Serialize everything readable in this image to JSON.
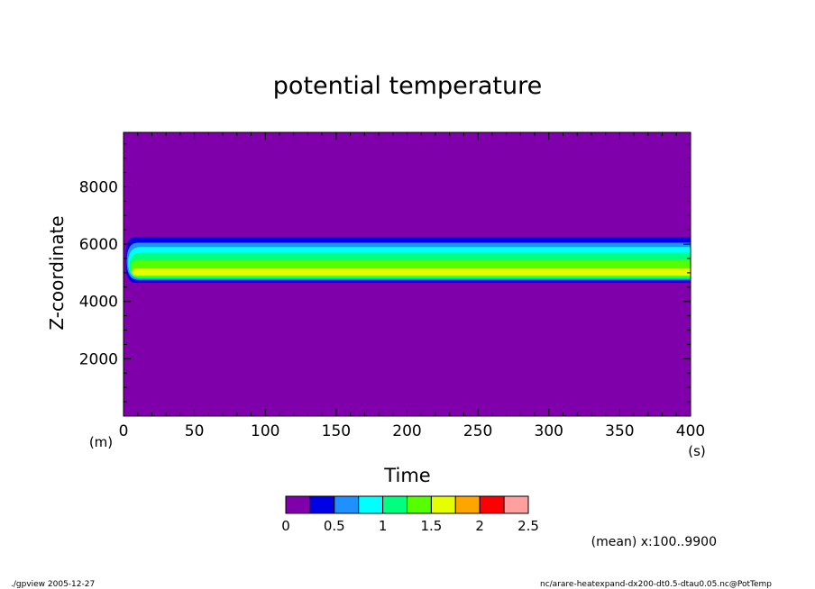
{
  "chart_data": {
    "type": "heatmap",
    "title": "potential temperature",
    "xlabel": "Time",
    "ylabel": "Z-coordinate",
    "x_unit": "(s)",
    "y_unit": "(m)",
    "xlim": [
      0,
      400
    ],
    "ylim": [
      0,
      9900
    ],
    "x_ticks": [
      "0",
      "50",
      "100",
      "150",
      "200",
      "250",
      "300",
      "350",
      "400"
    ],
    "y_ticks": [
      "2000",
      "4000",
      "6000",
      "8000"
    ],
    "annotation": "(mean) x:100..9900",
    "colorbar": {
      "levels": [
        "0",
        "0.5",
        "1",
        "1.5",
        "2",
        "2.5"
      ],
      "colors": [
        "#7f00aa",
        "#0000e6",
        "#1e90ff",
        "#00ffff",
        "#00ff7f",
        "#55ff00",
        "#e6ff00",
        "#ffa500",
        "#ff0000",
        "#ffa0a0"
      ]
    },
    "background_color": "#7f00aa",
    "bands": [
      {
        "level": 0.25,
        "z_bottom": 4650,
        "z_top": 6250,
        "onset_s": 3,
        "color": "#0000e6"
      },
      {
        "level": 0.5,
        "z_bottom": 4750,
        "z_top": 6050,
        "onset_s": 5,
        "color": "#1e90ff"
      },
      {
        "level": 0.75,
        "z_bottom": 4800,
        "z_top": 5900,
        "onset_s": 7,
        "color": "#00ffff"
      },
      {
        "level": 1.0,
        "z_bottom": 4800,
        "z_top": 5700,
        "onset_s": 8,
        "color": "#00ff7f"
      },
      {
        "level": 1.25,
        "z_bottom": 4850,
        "z_top": 5450,
        "onset_s": 10,
        "color": "#55ff00"
      },
      {
        "level": 1.5,
        "z_bottom": 4900,
        "z_top": 5150,
        "onset_s": 12,
        "color": "#e6ff00"
      }
    ]
  },
  "footer": {
    "left": "./gpview  2005-12-27",
    "right": "nc/arare-heatexpand-dx200-dt0.5-dtau0.05.nc@PotTemp"
  }
}
